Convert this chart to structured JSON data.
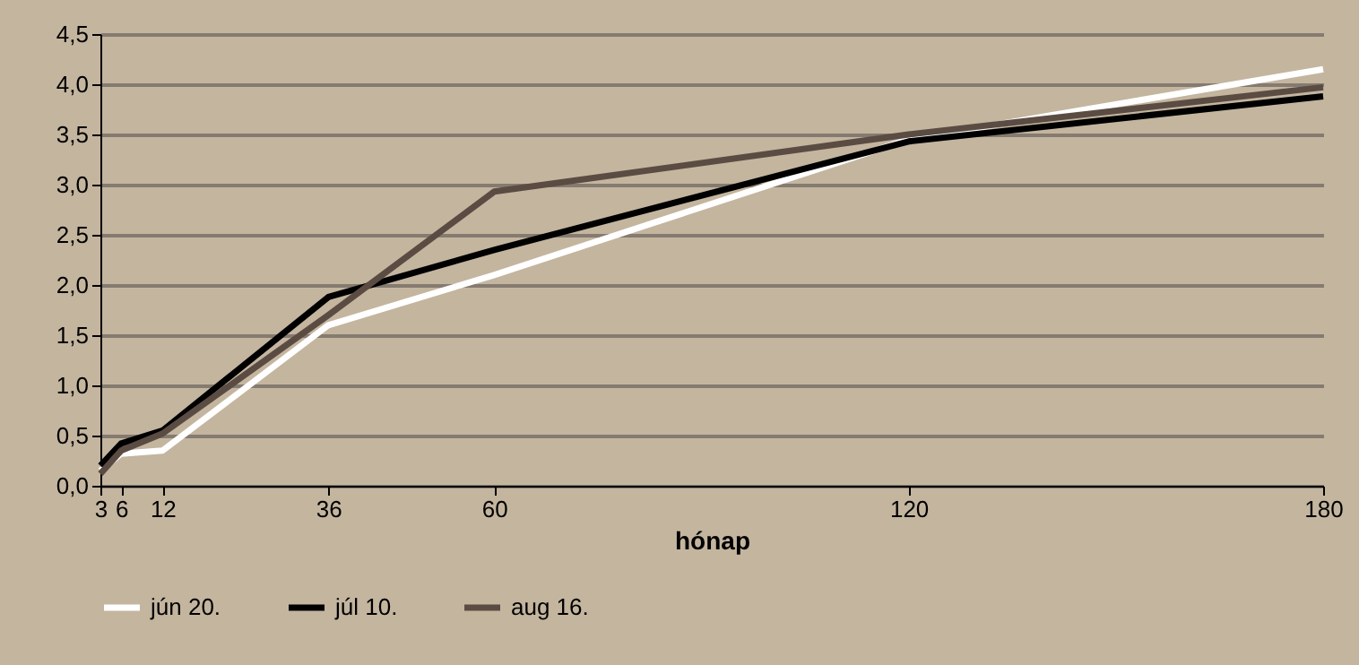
{
  "chart_data": {
    "type": "line",
    "xlabel": "hónap",
    "x": [
      3,
      6,
      12,
      36,
      60,
      120,
      180
    ],
    "series": [
      {
        "name": "jún 20.",
        "color": "#ffffff",
        "values": [
          0.15,
          0.32,
          0.35,
          1.6,
          2.1,
          3.45,
          4.15
        ]
      },
      {
        "name": "júl 10.",
        "color": "#000000",
        "values": [
          0.2,
          0.42,
          0.55,
          1.88,
          2.35,
          3.43,
          3.88
        ]
      },
      {
        "name": "aug 16.",
        "color": "#5b4c43",
        "values": [
          0.12,
          0.35,
          0.52,
          1.7,
          2.93,
          3.5,
          3.97
        ]
      }
    ],
    "xlim": [
      3,
      180
    ],
    "xticks": [
      3,
      6,
      12,
      36,
      60,
      120,
      180
    ],
    "ylim": [
      0,
      4.5
    ],
    "yticks": [
      {
        "value": 0,
        "label": "0,0"
      },
      {
        "value": 0.5,
        "label": "0,5"
      },
      {
        "value": 1,
        "label": "1,0"
      },
      {
        "value": 1.5,
        "label": "1,5"
      },
      {
        "value": 2,
        "label": "2,0"
      },
      {
        "value": 2.5,
        "label": "2,5"
      },
      {
        "value": 3,
        "label": "3,0"
      },
      {
        "value": 3.5,
        "label": "3,5"
      },
      {
        "value": 4,
        "label": "4,0"
      },
      {
        "value": 4.5,
        "label": "4,5"
      }
    ],
    "grid": "y",
    "legend": "bottom",
    "marker": "none",
    "line_style": "solid"
  }
}
